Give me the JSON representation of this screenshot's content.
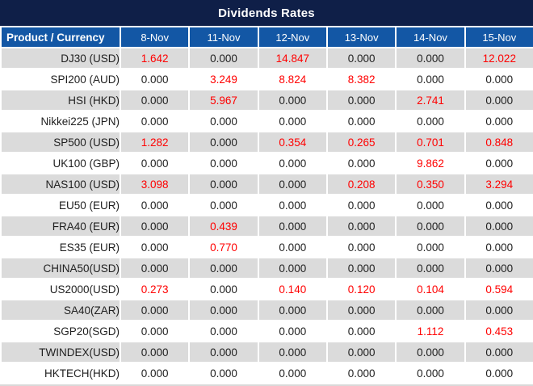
{
  "chart_data": {
    "type": "table",
    "title": "Dividends Rates",
    "columns": [
      "Product / Currency",
      "8-Nov",
      "11-Nov",
      "12-Nov",
      "13-Nov",
      "14-Nov",
      "15-Nov"
    ],
    "rows": [
      {
        "product": "DJ30 (USD)",
        "values": [
          "1.642",
          "0.000",
          "14.847",
          "0.000",
          "0.000",
          "12.022"
        ]
      },
      {
        "product": "SPI200 (AUD)",
        "values": [
          "0.000",
          "3.249",
          "8.824",
          "8.382",
          "0.000",
          "0.000"
        ]
      },
      {
        "product": "HSI (HKD)",
        "values": [
          "0.000",
          "5.967",
          "0.000",
          "0.000",
          "2.741",
          "0.000"
        ]
      },
      {
        "product": "Nikkei225 (JPN)",
        "values": [
          "0.000",
          "0.000",
          "0.000",
          "0.000",
          "0.000",
          "0.000"
        ]
      },
      {
        "product": "SP500 (USD)",
        "values": [
          "1.282",
          "0.000",
          "0.354",
          "0.265",
          "0.701",
          "0.848"
        ]
      },
      {
        "product": "UK100 (GBP)",
        "values": [
          "0.000",
          "0.000",
          "0.000",
          "0.000",
          "9.862",
          "0.000"
        ]
      },
      {
        "product": "NAS100 (USD)",
        "values": [
          "3.098",
          "0.000",
          "0.000",
          "0.208",
          "0.350",
          "3.294"
        ]
      },
      {
        "product": "EU50 (EUR)",
        "values": [
          "0.000",
          "0.000",
          "0.000",
          "0.000",
          "0.000",
          "0.000"
        ]
      },
      {
        "product": "FRA40 (EUR)",
        "values": [
          "0.000",
          "0.439",
          "0.000",
          "0.000",
          "0.000",
          "0.000"
        ]
      },
      {
        "product": "ES35 (EUR)",
        "values": [
          "0.000",
          "0.770",
          "0.000",
          "0.000",
          "0.000",
          "0.000"
        ]
      },
      {
        "product": "CHINA50(USD)",
        "values": [
          "0.000",
          "0.000",
          "0.000",
          "0.000",
          "0.000",
          "0.000"
        ]
      },
      {
        "product": "US2000(USD)",
        "values": [
          "0.273",
          "0.000",
          "0.140",
          "0.120",
          "0.104",
          "0.594"
        ]
      },
      {
        "product": "SA40(ZAR)",
        "values": [
          "0.000",
          "0.000",
          "0.000",
          "0.000",
          "0.000",
          "0.000"
        ]
      },
      {
        "product": "SGP20(SGD)",
        "values": [
          "0.000",
          "0.000",
          "0.000",
          "0.000",
          "1.112",
          "0.453"
        ]
      },
      {
        "product": "TWINDEX(USD)",
        "values": [
          "0.000",
          "0.000",
          "0.000",
          "0.000",
          "0.000",
          "0.000"
        ]
      },
      {
        "product": "HKTECH(HKD)",
        "values": [
          "0.000",
          "0.000",
          "0.000",
          "0.000",
          "0.000",
          "0.000"
        ]
      }
    ],
    "layout_hints": {
      "striped_rows": "odd data rows shaded gray",
      "value_color_rule": "nonzero values shown in red, zeros in black"
    }
  },
  "colors": {
    "title_bg": "#0F1F48",
    "header_bg": "#1357A5",
    "header_text": "#FFFFFF",
    "row_stripe_bg": "#DBDBDB",
    "row_white_bg": "#FFFFFF",
    "value_text": "#1F1F1F",
    "nonzero_value_text": "#FF0000"
  }
}
